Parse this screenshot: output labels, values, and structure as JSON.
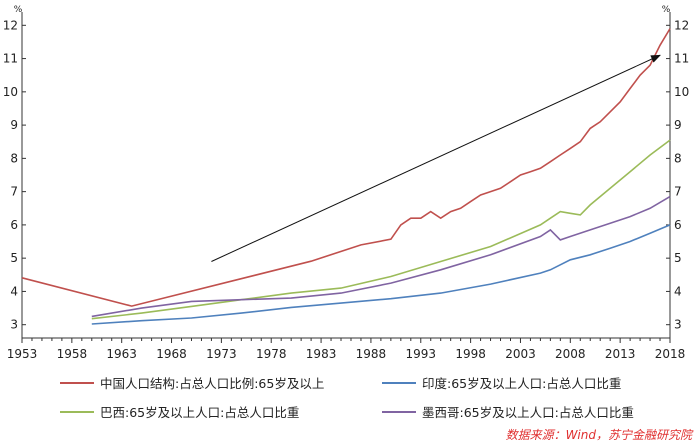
{
  "chart_data": {
    "type": "line",
    "unit_left": "%",
    "unit_right": "%",
    "ylim": [
      2.6,
      12.4
    ],
    "xlim": [
      1953,
      2018
    ],
    "yticks": [
      3,
      4,
      5,
      6,
      7,
      8,
      9,
      10,
      11,
      12
    ],
    "xticks": [
      1953,
      1958,
      1963,
      1968,
      1973,
      1978,
      1983,
      1988,
      1993,
      1998,
      2003,
      2008,
      2013,
      2018
    ],
    "grid": false,
    "legend_position": "bottom",
    "series": [
      {
        "name": "中国人口结构:占总人口比例:65岁及以上",
        "color": "#c0504d",
        "points": [
          [
            1953,
            4.41
          ],
          [
            1964,
            3.56
          ],
          [
            1982,
            4.91
          ],
          [
            1987,
            5.4
          ],
          [
            1990,
            5.57
          ],
          [
            1991,
            6.0
          ],
          [
            1992,
            6.2
          ],
          [
            1993,
            6.2
          ],
          [
            1994,
            6.4
          ],
          [
            1995,
            6.2
          ],
          [
            1996,
            6.4
          ],
          [
            1997,
            6.5
          ],
          [
            1998,
            6.7
          ],
          [
            1999,
            6.9
          ],
          [
            2000,
            7.0
          ],
          [
            2001,
            7.1
          ],
          [
            2002,
            7.3
          ],
          [
            2003,
            7.5
          ],
          [
            2004,
            7.6
          ],
          [
            2005,
            7.7
          ],
          [
            2006,
            7.9
          ],
          [
            2007,
            8.1
          ],
          [
            2008,
            8.3
          ],
          [
            2009,
            8.5
          ],
          [
            2010,
            8.9
          ],
          [
            2011,
            9.1
          ],
          [
            2012,
            9.4
          ],
          [
            2013,
            9.7
          ],
          [
            2014,
            10.1
          ],
          [
            2015,
            10.5
          ],
          [
            2016,
            10.8
          ],
          [
            2017,
            11.4
          ],
          [
            2018,
            11.9
          ]
        ]
      },
      {
        "name": "印度:65岁及以上人口:占总人口比重",
        "color": "#4f81bd",
        "points": [
          [
            1960,
            3.02
          ],
          [
            1965,
            3.12
          ],
          [
            1970,
            3.2
          ],
          [
            1975,
            3.35
          ],
          [
            1980,
            3.52
          ],
          [
            1985,
            3.65
          ],
          [
            1990,
            3.78
          ],
          [
            1995,
            3.95
          ],
          [
            2000,
            4.22
          ],
          [
            2005,
            4.55
          ],
          [
            2006,
            4.65
          ],
          [
            2007,
            4.8
          ],
          [
            2008,
            4.95
          ],
          [
            2010,
            5.1
          ],
          [
            2012,
            5.3
          ],
          [
            2014,
            5.5
          ],
          [
            2016,
            5.75
          ],
          [
            2018,
            6.0
          ]
        ]
      },
      {
        "name": "巴西:65岁及以上人口:占总人口比重",
        "color": "#9bbb59",
        "points": [
          [
            1960,
            3.18
          ],
          [
            1965,
            3.35
          ],
          [
            1970,
            3.55
          ],
          [
            1975,
            3.75
          ],
          [
            1980,
            3.95
          ],
          [
            1985,
            4.1
          ],
          [
            1990,
            4.45
          ],
          [
            1995,
            4.9
          ],
          [
            2000,
            5.35
          ],
          [
            2005,
            6.0
          ],
          [
            2006,
            6.2
          ],
          [
            2007,
            6.4
          ],
          [
            2008,
            6.35
          ],
          [
            2009,
            6.3
          ],
          [
            2010,
            6.6
          ],
          [
            2012,
            7.1
          ],
          [
            2014,
            7.6
          ],
          [
            2016,
            8.1
          ],
          [
            2018,
            8.55
          ]
        ]
      },
      {
        "name": "墨西哥:65岁及以上人口:占总人口比重",
        "color": "#8064a2",
        "points": [
          [
            1960,
            3.25
          ],
          [
            1965,
            3.5
          ],
          [
            1970,
            3.7
          ],
          [
            1975,
            3.75
          ],
          [
            1980,
            3.8
          ],
          [
            1985,
            3.95
          ],
          [
            1990,
            4.25
          ],
          [
            1995,
            4.65
          ],
          [
            2000,
            5.1
          ],
          [
            2005,
            5.65
          ],
          [
            2006,
            5.85
          ],
          [
            2007,
            5.55
          ],
          [
            2008,
            5.65
          ],
          [
            2010,
            5.85
          ],
          [
            2012,
            6.05
          ],
          [
            2014,
            6.25
          ],
          [
            2016,
            6.5
          ],
          [
            2018,
            6.85
          ]
        ]
      }
    ],
    "annotations": [
      {
        "type": "arrow",
        "from": [
          1972,
          4.9
        ],
        "to": [
          2017,
          11.1
        ]
      }
    ]
  },
  "source": "数据来源：Wind，苏宁金融研究院"
}
